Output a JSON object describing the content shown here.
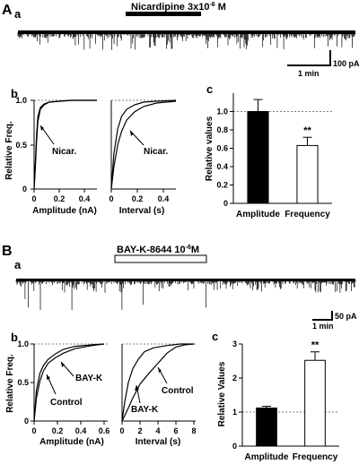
{
  "figure": {
    "panel_A": {
      "label": "A",
      "sub_a": {
        "label": "a",
        "drug_label": "Nicardipine 3x10",
        "drug_exp": "-6",
        "drug_unit": " M",
        "scale_amp": "100 pA",
        "scale_time": "1 min"
      },
      "sub_b": {
        "label": "b",
        "ylabel": "Relative Freq.",
        "amp_xlabel": "Amplitude (nA)",
        "int_xlabel": "Interval (s)",
        "annotation_left": "Nicar.",
        "annotation_right": "Nicar.",
        "y_ticks": [
          "0",
          "0.5",
          "1.0"
        ],
        "amp_x_ticks": [
          "0",
          "0.2",
          "0.4"
        ],
        "int_x_ticks": [
          "0",
          "0.2",
          "0.4"
        ]
      },
      "sub_c": {
        "label": "c",
        "ylabel": "Relative values",
        "y_ticks": [
          "0",
          "0.2",
          "0.4",
          "0.6",
          "0.8",
          "1.0"
        ],
        "significance": "**"
      }
    },
    "panel_B": {
      "label": "B",
      "sub_a": {
        "label": "a",
        "drug_label": "BAY-K-8644  10",
        "drug_exp": "-6",
        "drug_unit": "M",
        "scale_time": "1 min",
        "scale_amp": "50 pA"
      },
      "sub_b": {
        "label": "b",
        "ylabel": "Relative Freq.",
        "amp_xlabel": "Amplitude (nA)",
        "int_xlabel": "Interval  (s)",
        "ann_bayk_left": "BAY-K",
        "ann_control_left": "Control",
        "ann_bayk_right": "BAY-K",
        "ann_control_right": "Control",
        "y_ticks": [
          "0",
          "0.5",
          "1.0"
        ],
        "amp_x_ticks": [
          "0",
          "0.2",
          "0.4",
          "0.6"
        ],
        "int_x_ticks": [
          "0",
          "2",
          "4",
          "6",
          "8"
        ]
      },
      "sub_c": {
        "label": "c",
        "ylabel": "Relative Values",
        "y_ticks": [
          "0",
          "1",
          "2",
          "3"
        ],
        "significance": "**"
      }
    }
  },
  "chart_data": [
    {
      "type": "bar",
      "panel": "A-c",
      "title": "",
      "ylabel": "Relative values",
      "ylim": [
        0,
        1.2
      ],
      "categories": [
        "Amplitude",
        "Frequency"
      ],
      "values": [
        1.0,
        0.63
      ],
      "errors": [
        0.13,
        0.09
      ],
      "colors": [
        "#000000",
        "#ffffff"
      ],
      "reference_line": 1.0,
      "significance": [
        "",
        "**"
      ]
    },
    {
      "type": "bar",
      "panel": "B-c",
      "title": "",
      "ylabel": "Relative Values",
      "ylim": [
        0,
        3
      ],
      "categories": [
        "Amplitude",
        "Frequency"
      ],
      "values": [
        1.12,
        2.52
      ],
      "errors": [
        0.05,
        0.25
      ],
      "colors": [
        "#000000",
        "#ffffff"
      ],
      "reference_line": 1.0,
      "significance": [
        "",
        "**"
      ]
    },
    {
      "type": "line",
      "panel": "A-b-left",
      "xlabel": "Amplitude (nA)",
      "ylabel": "Relative Freq.",
      "xlim": [
        0,
        0.5
      ],
      "ylim": [
        0,
        1.0
      ],
      "series": [
        {
          "x": [
            0,
            0.01,
            0.02,
            0.03,
            0.05,
            0.08,
            0.12,
            0.2,
            0.3,
            0.5
          ],
          "y": [
            0,
            0.3,
            0.62,
            0.82,
            0.92,
            0.96,
            0.98,
            0.99,
            1.0,
            1.0
          ]
        },
        {
          "name": "Nicar.",
          "x": [
            0,
            0.01,
            0.02,
            0.03,
            0.05,
            0.08,
            0.12,
            0.2,
            0.3,
            0.5
          ],
          "y": [
            0,
            0.24,
            0.55,
            0.76,
            0.9,
            0.95,
            0.98,
            0.99,
            1.0,
            1.0
          ]
        }
      ]
    },
    {
      "type": "line",
      "panel": "A-b-right",
      "xlabel": "Interval (s)",
      "ylabel": "",
      "xlim": [
        0,
        0.5
      ],
      "ylim": [
        0,
        1.0
      ],
      "series": [
        {
          "x": [
            0,
            0.02,
            0.05,
            0.08,
            0.12,
            0.18,
            0.25,
            0.35,
            0.5
          ],
          "y": [
            0,
            0.4,
            0.68,
            0.82,
            0.9,
            0.95,
            0.98,
            0.99,
            1.0
          ]
        },
        {
          "name": "Nicar.",
          "x": [
            0,
            0.02,
            0.05,
            0.08,
            0.12,
            0.18,
            0.25,
            0.35,
            0.5
          ],
          "y": [
            0,
            0.25,
            0.5,
            0.65,
            0.78,
            0.87,
            0.93,
            0.97,
            0.99
          ]
        }
      ]
    },
    {
      "type": "line",
      "panel": "B-b-left",
      "xlabel": "Amplitude (nA)",
      "ylabel": "Relative Freq.",
      "xlim": [
        0,
        0.6
      ],
      "ylim": [
        0,
        1.0
      ],
      "series": [
        {
          "name": "Control",
          "x": [
            0,
            0.02,
            0.05,
            0.08,
            0.12,
            0.18,
            0.25,
            0.35,
            0.5,
            0.6
          ],
          "y": [
            0,
            0.4,
            0.62,
            0.72,
            0.8,
            0.87,
            0.93,
            0.97,
            0.99,
            1.0
          ]
        },
        {
          "name": "BAY-K",
          "x": [
            0,
            0.02,
            0.05,
            0.08,
            0.12,
            0.18,
            0.25,
            0.35,
            0.5,
            0.6
          ],
          "y": [
            0,
            0.3,
            0.52,
            0.65,
            0.75,
            0.82,
            0.88,
            0.94,
            0.98,
            1.0
          ]
        }
      ]
    },
    {
      "type": "line",
      "panel": "B-b-right",
      "xlabel": "Interval  (s)",
      "ylabel": "",
      "xlim": [
        0,
        8
      ],
      "ylim": [
        0,
        1.0
      ],
      "series": [
        {
          "name": "BAY-K",
          "x": [
            0,
            0.3,
            0.7,
            1.2,
            1.8,
            2.5,
            3.5,
            5,
            6.5,
            8
          ],
          "y": [
            0,
            0.25,
            0.5,
            0.68,
            0.8,
            0.9,
            0.95,
            0.98,
            1.0,
            1.0
          ]
        },
        {
          "name": "Control",
          "x": [
            0,
            0.5,
            1.2,
            2,
            3,
            4,
            5,
            6,
            7,
            8
          ],
          "y": [
            0,
            0.12,
            0.3,
            0.48,
            0.62,
            0.75,
            0.88,
            0.96,
            0.99,
            1.0
          ]
        }
      ]
    }
  ]
}
